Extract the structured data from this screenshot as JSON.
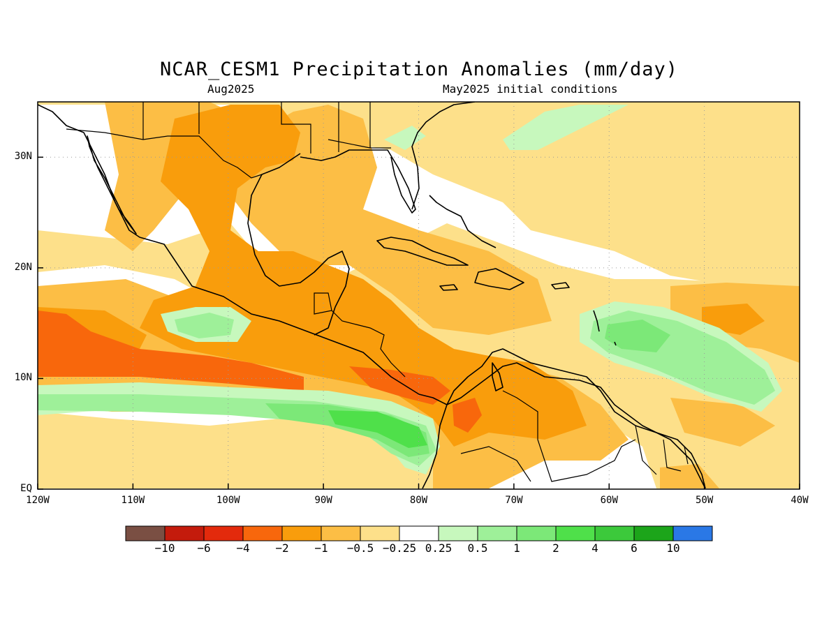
{
  "title": "NCAR_CESM1 Precipitation Anomalies (mm/day)",
  "subtitle_left": "Aug2025",
  "subtitle_right": "May2025 initial conditions",
  "map": {
    "lon_range": [
      -120,
      -40
    ],
    "lat_range": [
      0,
      35
    ],
    "x_ticks": [
      "120W",
      "110W",
      "100W",
      "90W",
      "80W",
      "70W",
      "60W",
      "50W",
      "40W"
    ],
    "y_ticks": [
      "EQ",
      "10N",
      "20N",
      "30N"
    ],
    "grid": true
  },
  "colorbar": {
    "colors": [
      "#7a4f43",
      "#c41b0c",
      "#e32a0c",
      "#f8670c",
      "#f99d0c",
      "#fcbe45",
      "#fde08a",
      "#ffffff",
      "#c7f8bd",
      "#9ef099",
      "#7ce878",
      "#4fe04a",
      "#3cc93b",
      "#1ca51a",
      "#2a78e6"
    ],
    "labels": [
      "-10",
      "-6",
      "-4",
      "-2",
      "-1",
      "-0.5",
      "-0.25",
      "0.25",
      "0.5",
      "1",
      "2",
      "4",
      "6",
      "10"
    ]
  }
}
